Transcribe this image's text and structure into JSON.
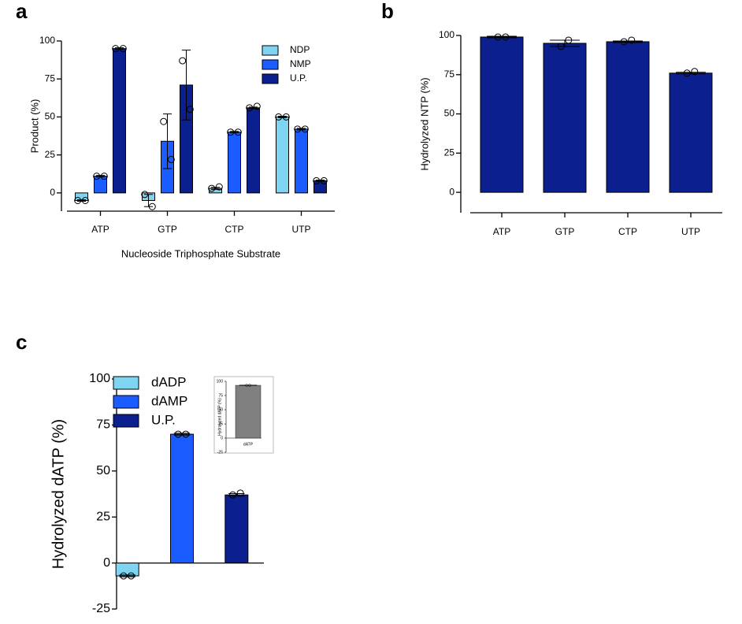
{
  "chart_data": [
    {
      "type": "bar",
      "panel_label": "a",
      "ylabel": "Product (%)",
      "xlabel": "Nucleoside Triphosphate Substrate",
      "categories": [
        "ATP",
        "GTP",
        "CTP",
        "UTP"
      ],
      "series": [
        {
          "name": "NDP",
          "color": "#7fd4f2",
          "values": [
            -5,
            -5,
            3,
            50
          ],
          "errors": [
            0.5,
            4,
            0.7,
            0.5
          ],
          "points": [
            [
              -5,
              -5
            ],
            [
              -1,
              -9
            ],
            [
              3,
              4
            ],
            [
              50,
              50
            ]
          ]
        },
        {
          "name": "NMP",
          "color": "#1a5cff",
          "values": [
            11,
            34,
            40,
            42
          ],
          "errors": [
            0.5,
            18,
            0.5,
            0.5
          ],
          "points": [
            [
              11,
              11
            ],
            [
              47,
              22
            ],
            [
              40,
              40
            ],
            [
              42,
              42
            ]
          ]
        },
        {
          "name": "U.P.",
          "color": "#0b1f8f",
          "values": [
            95,
            71,
            56,
            8
          ],
          "errors": [
            0.5,
            23,
            0.5,
            0.5
          ],
          "points": [
            [
              95,
              95
            ],
            [
              87,
              55
            ],
            [
              56,
              57
            ],
            [
              8,
              8
            ]
          ]
        }
      ],
      "ylim": [
        -12,
        100
      ],
      "yticks": [
        0,
        25,
        50,
        75,
        100
      ],
      "legend": "upper right"
    },
    {
      "type": "bar",
      "panel_label": "b",
      "ylabel": "Hydrolyzed NTP (%)",
      "categories": [
        "ATP",
        "GTP",
        "CTP",
        "UTP"
      ],
      "color": "#0b1f8f",
      "values": [
        99,
        95,
        96,
        76
      ],
      "errors": [
        0.5,
        2,
        0.5,
        0.5
      ],
      "points": [
        [
          99,
          99
        ],
        [
          93,
          97
        ],
        [
          96,
          97
        ],
        [
          76,
          77
        ]
      ],
      "ylim": [
        -13,
        100
      ],
      "yticks": [
        0,
        25,
        50,
        75,
        100
      ]
    },
    {
      "type": "bar",
      "panel_label": "c",
      "ylabel": "Hydrolyzed dATP (%)",
      "categories": [
        null,
        null,
        null
      ],
      "series": [
        {
          "name": "dADP",
          "color": "#7fd4f2",
          "values": [
            -7,
            null,
            null
          ],
          "errors": [
            0.5,
            null,
            null
          ],
          "points": [
            [
              -7,
              -7
            ],
            null,
            null
          ]
        },
        {
          "name": "dAMP",
          "color": "#1a5cff",
          "values": [
            null,
            70,
            null
          ],
          "errors": [
            null,
            0.5,
            null
          ],
          "points": [
            null,
            [
              70,
              70
            ],
            null
          ]
        },
        {
          "name": "U.P.",
          "color": "#0b1f8f",
          "values": [
            null,
            null,
            37
          ],
          "errors": [
            null,
            null,
            0.7
          ],
          "points": [
            null,
            null,
            [
              37,
              38
            ]
          ]
        }
      ],
      "ylim": [
        -25,
        100
      ],
      "yticks": [
        -25,
        0,
        25,
        50,
        75,
        100
      ],
      "legend": "upper left"
    },
    {
      "type": "bar",
      "ylabel": "Hydrolyzed dATP (%)",
      "categories": [
        "dATP"
      ],
      "color": "#808080",
      "values": [
        93
      ],
      "errors": [
        0.5
      ],
      "points": [
        [
          93,
          93
        ]
      ],
      "ylim": [
        -25,
        100
      ],
      "yticks": [
        -25,
        0,
        25,
        50,
        75,
        100
      ]
    }
  ]
}
